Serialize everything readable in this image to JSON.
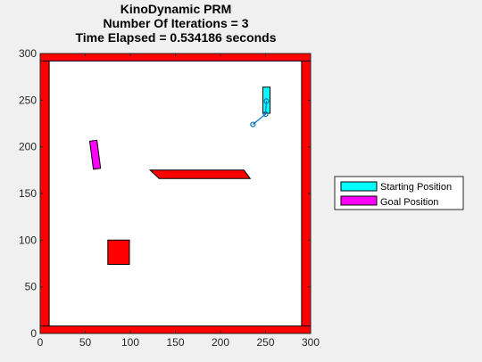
{
  "chart_data": {
    "type": "scatter",
    "title_lines": [
      "KinoDynamic PRM",
      "Number Of Iterations = 3",
      "Time Elapsed = 0.534186 seconds"
    ],
    "xlabel": "",
    "ylabel": "",
    "xlim": [
      0,
      300
    ],
    "ylim": [
      0,
      300
    ],
    "xticks": [
      0,
      50,
      100,
      150,
      200,
      250,
      300
    ],
    "yticks": [
      0,
      50,
      100,
      150,
      200,
      250,
      300
    ],
    "grid": false,
    "legend_position": "outside-right",
    "colors": {
      "obstacle": "#ff0000",
      "start": "#00ffff",
      "goal": "#ff00ff",
      "path": "#0072bd",
      "axes_bg": "#ffffff",
      "figure_bg": "#f0f0f0"
    },
    "obstacles": [
      {
        "name": "left-wall",
        "polygon": [
          [
            0,
            0
          ],
          [
            10,
            0
          ],
          [
            10,
            300
          ],
          [
            0,
            300
          ]
        ]
      },
      {
        "name": "right-wall",
        "polygon": [
          [
            290,
            0
          ],
          [
            300,
            0
          ],
          [
            300,
            300
          ],
          [
            290,
            300
          ]
        ]
      },
      {
        "name": "bottom-wall",
        "polygon": [
          [
            0,
            0
          ],
          [
            300,
            0
          ],
          [
            300,
            8
          ],
          [
            0,
            8
          ]
        ]
      },
      {
        "name": "top-wall",
        "polygon": [
          [
            0,
            292
          ],
          [
            300,
            292
          ],
          [
            300,
            300
          ],
          [
            0,
            300
          ]
        ]
      },
      {
        "name": "center-bar",
        "polygon": [
          [
            122,
            175
          ],
          [
            226,
            175
          ],
          [
            233,
            166
          ],
          [
            132,
            166
          ]
        ]
      },
      {
        "name": "square-block",
        "polygon": [
          [
            75,
            74
          ],
          [
            99,
            74
          ],
          [
            99,
            100
          ],
          [
            75,
            100
          ]
        ]
      }
    ],
    "start_pose": {
      "name": "Starting Position",
      "polygon": [
        [
          247,
          236
        ],
        [
          255,
          236
        ],
        [
          255,
          264
        ],
        [
          247,
          264
        ]
      ]
    },
    "goal_pose": {
      "name": "Goal Position",
      "polygon": [
        [
          55,
          206
        ],
        [
          63,
          207
        ],
        [
          67,
          177
        ],
        [
          59,
          176
        ]
      ]
    },
    "path": {
      "x": [
        251,
        250,
        236
      ],
      "y": [
        249,
        235,
        224
      ]
    },
    "legend": [
      "Starting Position",
      "Goal Position"
    ]
  }
}
